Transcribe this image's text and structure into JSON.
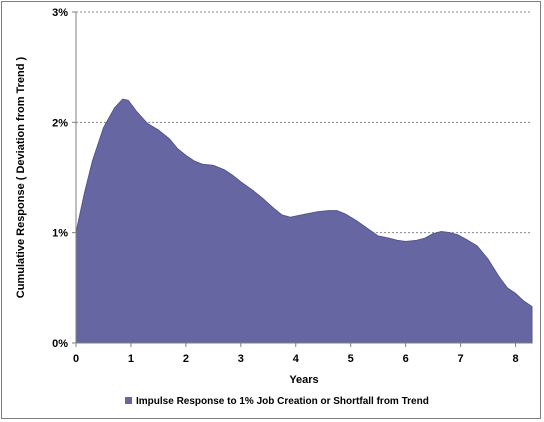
{
  "chart_data": {
    "type": "area",
    "ylabel": "Cumulative Response  ( Deviation from Trend )",
    "xlabel": "Years",
    "xlim": [
      0,
      8.3
    ],
    "ylim": [
      0,
      3
    ],
    "x_ticks": [
      0,
      1,
      2,
      3,
      4,
      5,
      6,
      7,
      8
    ],
    "x_tick_labels": [
      "0",
      "1",
      "2",
      "3",
      "4",
      "5",
      "6",
      "7",
      "8"
    ],
    "y_ticks": [
      0,
      1,
      2,
      3
    ],
    "y_tick_labels": [
      "0%",
      "1%",
      "2%",
      "3%"
    ],
    "grid": "horizontal dashed at y ticks",
    "legend_position": "bottom",
    "series": [
      {
        "name": "Impulse Response to 1% Job Creation or Shortfall from Trend",
        "color": "#6666a3",
        "x": [
          0,
          0.15,
          0.3,
          0.5,
          0.7,
          0.85,
          0.95,
          1.1,
          1.3,
          1.5,
          1.7,
          1.85,
          2.0,
          2.15,
          2.3,
          2.5,
          2.7,
          2.85,
          3.0,
          3.2,
          3.4,
          3.6,
          3.75,
          3.9,
          4.0,
          4.2,
          4.4,
          4.6,
          4.75,
          4.9,
          5.1,
          5.3,
          5.5,
          5.7,
          5.85,
          6.0,
          6.2,
          6.35,
          6.5,
          6.65,
          6.8,
          6.95,
          7.1,
          7.3,
          7.5,
          7.7,
          7.85,
          8.0,
          8.15,
          8.3
        ],
        "y": [
          1.0,
          1.35,
          1.65,
          1.95,
          2.13,
          2.21,
          2.2,
          2.1,
          1.99,
          1.93,
          1.85,
          1.76,
          1.7,
          1.65,
          1.62,
          1.61,
          1.57,
          1.52,
          1.46,
          1.39,
          1.31,
          1.22,
          1.16,
          1.14,
          1.15,
          1.17,
          1.19,
          1.2,
          1.2,
          1.17,
          1.11,
          1.04,
          0.97,
          0.95,
          0.93,
          0.92,
          0.93,
          0.95,
          0.99,
          1.01,
          1.0,
          0.98,
          0.94,
          0.88,
          0.76,
          0.6,
          0.5,
          0.45,
          0.38,
          0.33
        ]
      }
    ]
  }
}
